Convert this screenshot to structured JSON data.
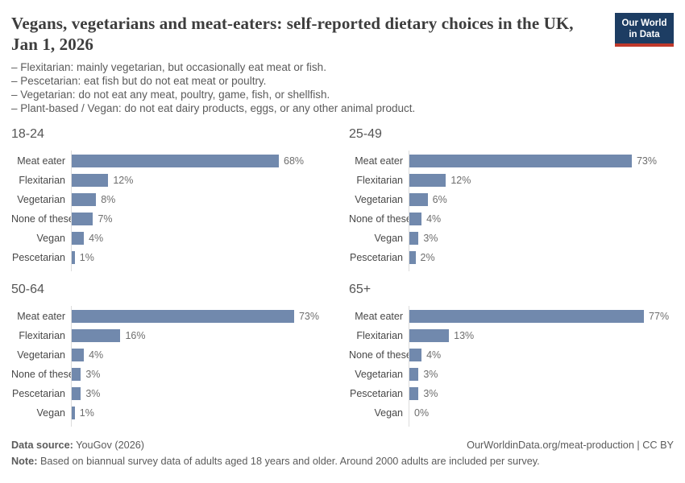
{
  "header": {
    "title": "Vegans, vegetarians and meat-eaters: self-reported dietary choices in the UK, Jan 1, 2026",
    "logo_line1": "Our World",
    "logo_line2": "in Data",
    "logo_bg_color": "#1d3d63",
    "logo_stripe_color": "#c0392b"
  },
  "subtitle_lines": [
    "– Flexitarian: mainly vegetarian, but occasionally eat meat or fish.",
    "– Pescetarian: eat fish but do not eat meat or poultry.",
    "– Vegetarian: do not eat any meat, poultry, game, fish, or shellfish.",
    "– Plant-based / Vegan: do not eat dairy products, eggs, or any other animal product."
  ],
  "chart_data": {
    "type": "bar",
    "orientation": "horizontal",
    "unit": "%",
    "xlim": [
      0,
      100
    ],
    "bar_color": "#7189ad",
    "grid": false,
    "legend": "none",
    "layout": "2x2 small multiples by age group",
    "panels": [
      {
        "title": "18-24",
        "categories": [
          "Meat eater",
          "Flexitarian",
          "Vegetarian",
          "None of these",
          "Vegan",
          "Pescetarian"
        ],
        "values": [
          68,
          12,
          8,
          7,
          4,
          1
        ],
        "value_labels": [
          "68%",
          "12%",
          "8%",
          "7%",
          "4%",
          "1%"
        ]
      },
      {
        "title": "25-49",
        "categories": [
          "Meat eater",
          "Flexitarian",
          "Vegetarian",
          "None of these",
          "Vegan",
          "Pescetarian"
        ],
        "values": [
          73,
          12,
          6,
          4,
          3,
          2
        ],
        "value_labels": [
          "73%",
          "12%",
          "6%",
          "4%",
          "3%",
          "2%"
        ]
      },
      {
        "title": "50-64",
        "categories": [
          "Meat eater",
          "Flexitarian",
          "Vegetarian",
          "None of these",
          "Pescetarian",
          "Vegan"
        ],
        "values": [
          73,
          16,
          4,
          3,
          3,
          1
        ],
        "value_labels": [
          "73%",
          "16%",
          "4%",
          "3%",
          "3%",
          "1%"
        ]
      },
      {
        "title": "65+",
        "categories": [
          "Meat eater",
          "Flexitarian",
          "None of these",
          "Vegetarian",
          "Pescetarian",
          "Vegan"
        ],
        "values": [
          77,
          13,
          4,
          3,
          3,
          0
        ],
        "value_labels": [
          "77%",
          "13%",
          "4%",
          "3%",
          "3%",
          "0%"
        ]
      }
    ]
  },
  "footer": {
    "datasource_label": "Data source:",
    "datasource_value": " YouGov (2026)",
    "link_text": "OurWorldinData.org/meat-production | CC BY",
    "note_label": "Note:",
    "note_value": " Based on biannual survey data of adults aged 18 years and older. Around 2000 adults are included per survey."
  }
}
